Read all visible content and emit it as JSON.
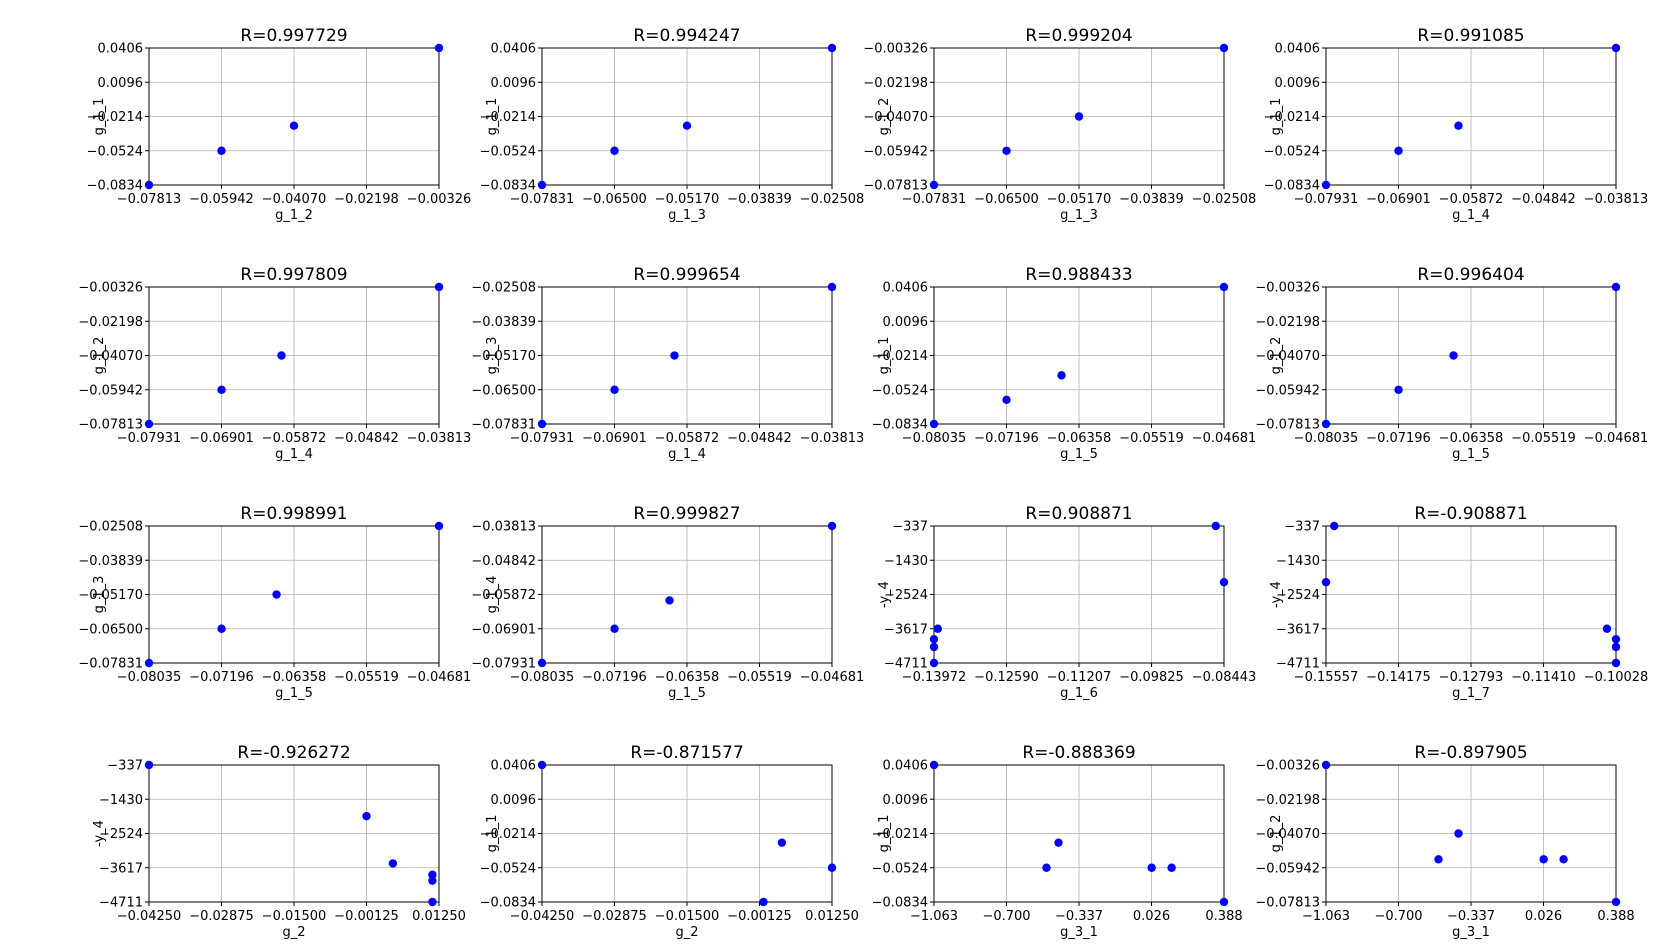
{
  "chart_data": [
    {
      "type": "scatter",
      "title": "R=0.997729",
      "xlabel": "g_1_2",
      "ylabel": "g_1_1",
      "xticks": [
        "−0.07813",
        "−0.05942",
        "−0.04070",
        "−0.02198",
        "−0.00326"
      ],
      "yticks": [
        "−0.0834",
        "−0.0524",
        "−0.0214",
        "0.0096",
        "0.0406"
      ],
      "xlim": [
        -0.07813,
        -0.00326
      ],
      "ylim": [
        -0.0834,
        0.0406
      ],
      "grid": true,
      "color": "#0000ff",
      "x": [
        -0.07813,
        -0.05942,
        -0.0407,
        -0.00326
      ],
      "y": [
        -0.0834,
        -0.0524,
        -0.0297,
        0.0406
      ]
    },
    {
      "type": "scatter",
      "title": "R=0.994247",
      "xlabel": "g_1_3",
      "ylabel": "g_1_1",
      "xticks": [
        "−0.07831",
        "−0.06500",
        "−0.05170",
        "−0.03839",
        "−0.02508"
      ],
      "yticks": [
        "−0.0834",
        "−0.0524",
        "−0.0214",
        "0.0096",
        "0.0406"
      ],
      "xlim": [
        -0.07831,
        -0.02508
      ],
      "ylim": [
        -0.0834,
        0.0406
      ],
      "grid": true,
      "color": "#0000ff",
      "x": [
        -0.07831,
        -0.065,
        -0.0517,
        -0.02508
      ],
      "y": [
        -0.0834,
        -0.0524,
        -0.0297,
        0.0406
      ]
    },
    {
      "type": "scatter",
      "title": "R=0.999204",
      "xlabel": "g_1_3",
      "ylabel": "g_1_2",
      "xticks": [
        "−0.07831",
        "−0.06500",
        "−0.05170",
        "−0.03839",
        "−0.02508"
      ],
      "yticks": [
        "−0.07813",
        "−0.05942",
        "−0.04070",
        "−0.02198",
        "−0.00326"
      ],
      "xlim": [
        -0.07831,
        -0.02508
      ],
      "ylim": [
        -0.07813,
        -0.00326
      ],
      "grid": true,
      "color": "#0000ff",
      "x": [
        -0.07831,
        -0.065,
        -0.0517,
        -0.02508
      ],
      "y": [
        -0.07813,
        -0.05942,
        -0.0407,
        -0.00326
      ]
    },
    {
      "type": "scatter",
      "title": "R=0.991085",
      "xlabel": "g_1_4",
      "ylabel": "g_1_1",
      "xticks": [
        "−0.07931",
        "−0.06901",
        "−0.05872",
        "−0.04842",
        "−0.03813"
      ],
      "yticks": [
        "−0.0834",
        "−0.0524",
        "−0.0214",
        "0.0096",
        "0.0406"
      ],
      "xlim": [
        -0.07931,
        -0.03813
      ],
      "ylim": [
        -0.0834,
        0.0406
      ],
      "grid": true,
      "color": "#0000ff",
      "x": [
        -0.07931,
        -0.06901,
        -0.0605,
        -0.03813
      ],
      "y": [
        -0.0834,
        -0.0524,
        -0.0297,
        0.0406
      ]
    },
    {
      "type": "scatter",
      "title": "R=0.997809",
      "xlabel": "g_1_4",
      "ylabel": "g_1_2",
      "xticks": [
        "−0.07931",
        "−0.06901",
        "−0.05872",
        "−0.04842",
        "−0.03813"
      ],
      "yticks": [
        "−0.07813",
        "−0.05942",
        "−0.04070",
        "−0.02198",
        "−0.00326"
      ],
      "xlim": [
        -0.07931,
        -0.03813
      ],
      "ylim": [
        -0.07813,
        -0.00326
      ],
      "grid": true,
      "color": "#0000ff",
      "x": [
        -0.07931,
        -0.06901,
        -0.0605,
        -0.03813
      ],
      "y": [
        -0.07813,
        -0.05942,
        -0.0407,
        -0.00326
      ]
    },
    {
      "type": "scatter",
      "title": "R=0.999654",
      "xlabel": "g_1_4",
      "ylabel": "g_1_3",
      "xticks": [
        "−0.07931",
        "−0.06901",
        "−0.05872",
        "−0.04842",
        "−0.03813"
      ],
      "yticks": [
        "−0.07831",
        "−0.06500",
        "−0.05170",
        "−0.03839",
        "−0.02508"
      ],
      "xlim": [
        -0.07931,
        -0.03813
      ],
      "ylim": [
        -0.07831,
        -0.02508
      ],
      "grid": true,
      "color": "#0000ff",
      "x": [
        -0.07931,
        -0.06901,
        -0.0605,
        -0.03813
      ],
      "y": [
        -0.07831,
        -0.065,
        -0.0517,
        -0.02508
      ]
    },
    {
      "type": "scatter",
      "title": "R=0.988433",
      "xlabel": "g_1_5",
      "ylabel": "g_1_1",
      "xticks": [
        "−0.08035",
        "−0.07196",
        "−0.06358",
        "−0.05519",
        "−0.04681"
      ],
      "yticks": [
        "−0.0834",
        "−0.0524",
        "−0.0214",
        "0.0096",
        "0.0406"
      ],
      "xlim": [
        -0.08035,
        -0.04681
      ],
      "ylim": [
        -0.0834,
        0.0406
      ],
      "grid": true,
      "color": "#0000ff",
      "x": [
        -0.08035,
        -0.07196,
        -0.0656,
        -0.04681
      ],
      "y": [
        -0.0834,
        -0.0615,
        -0.0394,
        0.0406
      ]
    },
    {
      "type": "scatter",
      "title": "R=0.996404",
      "xlabel": "g_1_5",
      "ylabel": "g_1_2",
      "xticks": [
        "−0.08035",
        "−0.07196",
        "−0.06358",
        "−0.05519",
        "−0.04681"
      ],
      "yticks": [
        "−0.07813",
        "−0.05942",
        "−0.04070",
        "−0.02198",
        "−0.00326"
      ],
      "xlim": [
        -0.08035,
        -0.04681
      ],
      "ylim": [
        -0.07813,
        -0.00326
      ],
      "grid": true,
      "color": "#0000ff",
      "x": [
        -0.08035,
        -0.07196,
        -0.0656,
        -0.04681
      ],
      "y": [
        -0.07813,
        -0.05942,
        -0.0407,
        -0.00326
      ]
    },
    {
      "type": "scatter",
      "title": "R=0.998991",
      "xlabel": "g_1_5",
      "ylabel": "g_1_3",
      "xticks": [
        "−0.08035",
        "−0.07196",
        "−0.06358",
        "−0.05519",
        "−0.04681"
      ],
      "yticks": [
        "−0.07831",
        "−0.06500",
        "−0.05170",
        "−0.03839",
        "−0.02508"
      ],
      "xlim": [
        -0.08035,
        -0.04681
      ],
      "ylim": [
        -0.07831,
        -0.02508
      ],
      "grid": true,
      "color": "#0000ff",
      "x": [
        -0.08035,
        -0.07196,
        -0.0656,
        -0.04681
      ],
      "y": [
        -0.07831,
        -0.065,
        -0.0517,
        -0.02508
      ]
    },
    {
      "type": "scatter",
      "title": "R=0.999827",
      "xlabel": "g_1_5",
      "ylabel": "g_1_4",
      "xticks": [
        "−0.08035",
        "−0.07196",
        "−0.06358",
        "−0.05519",
        "−0.04681"
      ],
      "yticks": [
        "−0.07931",
        "−0.06901",
        "−0.05872",
        "−0.04842",
        "−0.03813"
      ],
      "xlim": [
        -0.08035,
        -0.04681
      ],
      "ylim": [
        -0.07931,
        -0.03813
      ],
      "grid": true,
      "color": "#0000ff",
      "x": [
        -0.08035,
        -0.07196,
        -0.0656,
        -0.04681
      ],
      "y": [
        -0.07931,
        -0.06901,
        -0.0605,
        -0.03813
      ]
    },
    {
      "type": "scatter",
      "title": "R=0.908871",
      "xlabel": "g_1_6",
      "ylabel": "-y_4",
      "xticks": [
        "−0.13972",
        "−0.12590",
        "−0.11207",
        "−0.09825",
        "−0.08443"
      ],
      "yticks": [
        "−4711",
        "−3617",
        "−2524",
        "−1430",
        "−337"
      ],
      "xlim": [
        -0.13972,
        -0.08443
      ],
      "ylim": [
        -4711,
        -337
      ],
      "grid": true,
      "color": "#0000ff",
      "x": [
        -0.13972,
        -0.13972,
        -0.13972,
        -0.139,
        -0.08443,
        -0.086
      ],
      "y": [
        -4711,
        -4200,
        -3950,
        -3617,
        -2130,
        -337
      ]
    },
    {
      "type": "scatter",
      "title": "R=-0.908871",
      "xlabel": "g_1_7",
      "ylabel": "-y_4",
      "xticks": [
        "−0.15557",
        "−0.14175",
        "−0.12793",
        "−0.11410",
        "−0.10028"
      ],
      "yticks": [
        "−4711",
        "−3617",
        "−2524",
        "−1430",
        "−337"
      ],
      "xlim": [
        -0.15557,
        -0.10028
      ],
      "ylim": [
        -4711,
        -337
      ],
      "grid": true,
      "color": "#0000ff",
      "x": [
        -0.15557,
        -0.154,
        -0.10028,
        -0.10028,
        -0.10028,
        -0.102
      ],
      "y": [
        -2130,
        -337,
        -4711,
        -4200,
        -3950,
        -3617
      ]
    },
    {
      "type": "scatter",
      "title": "R=-0.926272",
      "xlabel": "g_2",
      "ylabel": "-y_4",
      "xticks": [
        "−0.04250",
        "−0.02875",
        "−0.01500",
        "−0.00125",
        "0.01250"
      ],
      "yticks": [
        "−4711",
        "−3617",
        "−2524",
        "−1430",
        "−337"
      ],
      "xlim": [
        -0.0425,
        0.0125
      ],
      "ylim": [
        -4711,
        -337
      ],
      "grid": true,
      "color": "#0000ff",
      "x": [
        -0.0425,
        -0.00125,
        0.00375,
        0.01125,
        0.01125,
        0.01125
      ],
      "y": [
        -337,
        -1970,
        -3480,
        -4030,
        -3840,
        -4711
      ]
    },
    {
      "type": "scatter",
      "title": "R=-0.871577",
      "xlabel": "g_2",
      "ylabel": "g_1_1",
      "xticks": [
        "−0.04250",
        "−0.02875",
        "−0.01500",
        "−0.00125",
        "0.01250"
      ],
      "yticks": [
        "−0.0834",
        "−0.0524",
        "−0.0214",
        "0.0096",
        "0.0406"
      ],
      "xlim": [
        -0.0425,
        0.0125
      ],
      "ylim": [
        -0.0834,
        0.0406
      ],
      "grid": true,
      "color": "#0000ff",
      "x": [
        -0.0425,
        0.003,
        0.0125,
        -0.0005
      ],
      "y": [
        0.0406,
        -0.0297,
        -0.0524,
        -0.0834
      ]
    },
    {
      "type": "scatter",
      "title": "R=-0.888369",
      "xlabel": "g_3_1",
      "ylabel": "g_1_1",
      "xticks": [
        "−1.063",
        "−0.700",
        "−0.337",
        "0.026",
        "0.388"
      ],
      "yticks": [
        "−0.0834",
        "−0.0524",
        "−0.0214",
        "0.0096",
        "0.0406"
      ],
      "xlim": [
        -1.063,
        0.388
      ],
      "ylim": [
        -0.0834,
        0.0406
      ],
      "grid": true,
      "color": "#0000ff",
      "x": [
        -1.063,
        -0.5,
        -0.44,
        0.026,
        0.126,
        0.388
      ],
      "y": [
        0.0406,
        -0.0524,
        -0.0297,
        -0.0524,
        -0.0524,
        -0.0834
      ]
    },
    {
      "type": "scatter",
      "title": "R=-0.897905",
      "xlabel": "g_3_1",
      "ylabel": "g_1_2",
      "xticks": [
        "−1.063",
        "−0.700",
        "−0.337",
        "0.026",
        "0.388"
      ],
      "yticks": [
        "−0.07813",
        "−0.05942",
        "−0.04070",
        "−0.02198",
        "−0.00326"
      ],
      "xlim": [
        -1.063,
        0.388
      ],
      "ylim": [
        -0.07813,
        -0.00326
      ],
      "grid": true,
      "color": "#0000ff",
      "x": [
        -1.063,
        -0.5,
        -0.4,
        0.026,
        0.126,
        0.388
      ],
      "y": [
        -0.00326,
        -0.0548,
        -0.0407,
        -0.0548,
        -0.0548,
        -0.07813
      ]
    }
  ]
}
